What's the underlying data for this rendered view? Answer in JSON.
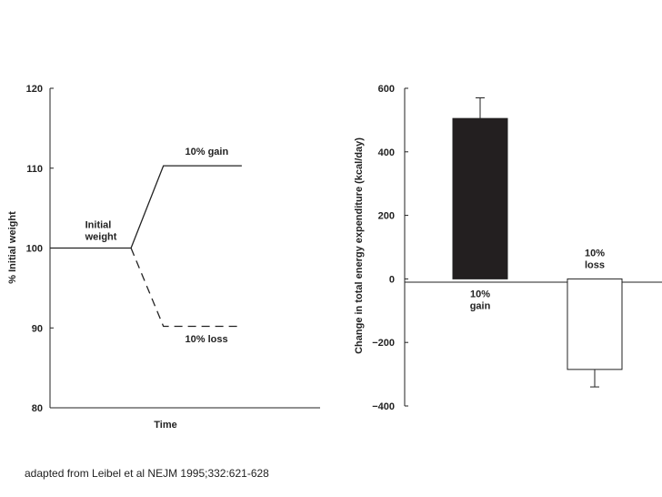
{
  "credit": "adapted from Leibel et al NEJM 1995;332:621-628",
  "chart_data": [
    {
      "type": "line",
      "title": "",
      "xlabel": "Time",
      "ylabel": "% Initial weight",
      "ylim": [
        80,
        120
      ],
      "yticks": [
        80,
        90,
        100,
        110,
        120
      ],
      "grid": false,
      "series": [
        {
          "name": "10% gain",
          "style": "solid",
          "points": [
            [
              0,
              100
            ],
            [
              3,
              100
            ],
            [
              4.2,
              110.3
            ],
            [
              7.1,
              110.3
            ]
          ]
        },
        {
          "name": "10% loss",
          "style": "dashed",
          "points": [
            [
              3,
              100
            ],
            [
              4.2,
              90.2
            ],
            [
              7.1,
              90.2
            ]
          ]
        }
      ],
      "xlim": [
        0,
        10
      ],
      "annotations": [
        {
          "lines": [
            "Initial",
            "weight"
          ],
          "x": 1.3,
          "y": 102.5
        },
        {
          "lines": [
            "10% gain"
          ],
          "x": 5.0,
          "y": 111.7
        },
        {
          "lines": [
            "10% loss"
          ],
          "x": 5.0,
          "y": 88.2
        }
      ]
    },
    {
      "type": "bar",
      "title": "",
      "xlabel": "",
      "ylabel": "Change in total energy expenditure (kcal/day)",
      "ylim": [
        -400,
        600
      ],
      "yticks": [
        -400,
        -200,
        0,
        200,
        400,
        600
      ],
      "ytick_labels": [
        "−400",
        "−200",
        "0",
        "200",
        "400",
        "600"
      ],
      "grid": false,
      "bars": [
        {
          "label": [
            "10%",
            "gain"
          ],
          "value": 505,
          "error": 65,
          "fill": "#231f20"
        },
        {
          "label": [
            "10%",
            "loss"
          ],
          "value": -285,
          "error": 55,
          "fill": "#ffffff"
        }
      ]
    }
  ]
}
